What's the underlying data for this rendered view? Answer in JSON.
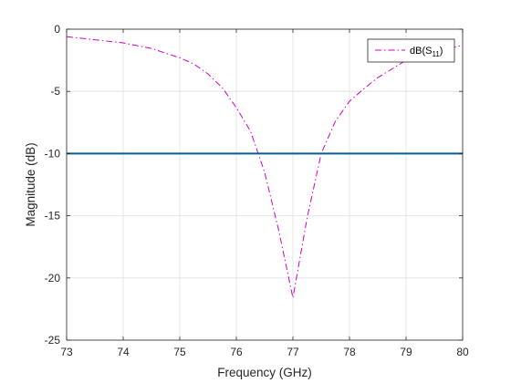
{
  "chart_data": {
    "type": "line",
    "title": "",
    "xlabel": "Frequency (GHz)",
    "ylabel": "Magnitude (dB)",
    "xlim": [
      73,
      80
    ],
    "ylim": [
      -25,
      0
    ],
    "xticks": [
      73,
      74,
      75,
      76,
      77,
      78,
      79,
      80
    ],
    "yticks": [
      0,
      -5,
      -10,
      -15,
      -20,
      -25
    ],
    "grid": true,
    "legend": {
      "placement": "top-right",
      "entries": [
        {
          "base": "dB(S",
          "sub": "11",
          "tail": ")"
        }
      ]
    },
    "series": [
      {
        "name": "dB(S11)",
        "style": "dash-dot",
        "color": "#cc00cc",
        "x": [
          73,
          73.5,
          74,
          74.5,
          75,
          75.25,
          75.5,
          75.75,
          76,
          76.25,
          76.5,
          76.75,
          77,
          77.25,
          77.5,
          77.75,
          78,
          78.25,
          78.5,
          78.75,
          79,
          79.5,
          80
        ],
        "y": [
          -0.6,
          -0.85,
          -1.1,
          -1.55,
          -2.3,
          -2.8,
          -3.6,
          -4.7,
          -6.3,
          -8.2,
          -11.5,
          -16.2,
          -21.6,
          -15.2,
          -10.0,
          -7.4,
          -5.8,
          -4.8,
          -3.9,
          -3.2,
          -2.5,
          -1.8,
          -1.3
        ]
      },
      {
        "name": "",
        "style": "solid",
        "color": "#0a5a96",
        "x": [
          73,
          80
        ],
        "y": [
          -10,
          -10
        ]
      }
    ]
  }
}
